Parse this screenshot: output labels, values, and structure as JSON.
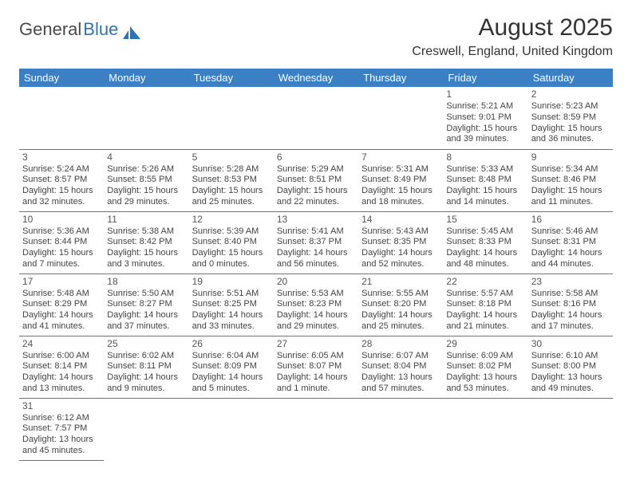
{
  "logo": {
    "general": "General",
    "blue": "Blue"
  },
  "title": "August 2025",
  "location": "Creswell, England, United Kingdom",
  "colors": {
    "header_bg": "#3b7fc4",
    "header_text": "#ffffff",
    "border": "#3b7fc4",
    "text": "#444444",
    "logo_blue": "#2e74b5"
  },
  "fonts": {
    "title_size": 30,
    "location_size": 16,
    "dayhead_size": 13,
    "cell_size": 11
  },
  "day_headers": [
    "Sunday",
    "Monday",
    "Tuesday",
    "Wednesday",
    "Thursday",
    "Friday",
    "Saturday"
  ],
  "weeks": [
    [
      null,
      null,
      null,
      null,
      null,
      {
        "n": "1",
        "sunrise": "5:21 AM",
        "sunset": "9:01 PM",
        "dayH": "15",
        "dayM": "39"
      },
      {
        "n": "2",
        "sunrise": "5:23 AM",
        "sunset": "8:59 PM",
        "dayH": "15",
        "dayM": "36"
      }
    ],
    [
      {
        "n": "3",
        "sunrise": "5:24 AM",
        "sunset": "8:57 PM",
        "dayH": "15",
        "dayM": "32"
      },
      {
        "n": "4",
        "sunrise": "5:26 AM",
        "sunset": "8:55 PM",
        "dayH": "15",
        "dayM": "29"
      },
      {
        "n": "5",
        "sunrise": "5:28 AM",
        "sunset": "8:53 PM",
        "dayH": "15",
        "dayM": "25"
      },
      {
        "n": "6",
        "sunrise": "5:29 AM",
        "sunset": "8:51 PM",
        "dayH": "15",
        "dayM": "22"
      },
      {
        "n": "7",
        "sunrise": "5:31 AM",
        "sunset": "8:49 PM",
        "dayH": "15",
        "dayM": "18"
      },
      {
        "n": "8",
        "sunrise": "5:33 AM",
        "sunset": "8:48 PM",
        "dayH": "15",
        "dayM": "14"
      },
      {
        "n": "9",
        "sunrise": "5:34 AM",
        "sunset": "8:46 PM",
        "dayH": "15",
        "dayM": "11"
      }
    ],
    [
      {
        "n": "10",
        "sunrise": "5:36 AM",
        "sunset": "8:44 PM",
        "dayH": "15",
        "dayM": "7"
      },
      {
        "n": "11",
        "sunrise": "5:38 AM",
        "sunset": "8:42 PM",
        "dayH": "15",
        "dayM": "3"
      },
      {
        "n": "12",
        "sunrise": "5:39 AM",
        "sunset": "8:40 PM",
        "dayH": "15",
        "dayM": "0"
      },
      {
        "n": "13",
        "sunrise": "5:41 AM",
        "sunset": "8:37 PM",
        "dayH": "14",
        "dayM": "56"
      },
      {
        "n": "14",
        "sunrise": "5:43 AM",
        "sunset": "8:35 PM",
        "dayH": "14",
        "dayM": "52"
      },
      {
        "n": "15",
        "sunrise": "5:45 AM",
        "sunset": "8:33 PM",
        "dayH": "14",
        "dayM": "48"
      },
      {
        "n": "16",
        "sunrise": "5:46 AM",
        "sunset": "8:31 PM",
        "dayH": "14",
        "dayM": "44"
      }
    ],
    [
      {
        "n": "17",
        "sunrise": "5:48 AM",
        "sunset": "8:29 PM",
        "dayH": "14",
        "dayM": "41"
      },
      {
        "n": "18",
        "sunrise": "5:50 AM",
        "sunset": "8:27 PM",
        "dayH": "14",
        "dayM": "37"
      },
      {
        "n": "19",
        "sunrise": "5:51 AM",
        "sunset": "8:25 PM",
        "dayH": "14",
        "dayM": "33"
      },
      {
        "n": "20",
        "sunrise": "5:53 AM",
        "sunset": "8:23 PM",
        "dayH": "14",
        "dayM": "29"
      },
      {
        "n": "21",
        "sunrise": "5:55 AM",
        "sunset": "8:20 PM",
        "dayH": "14",
        "dayM": "25"
      },
      {
        "n": "22",
        "sunrise": "5:57 AM",
        "sunset": "8:18 PM",
        "dayH": "14",
        "dayM": "21"
      },
      {
        "n": "23",
        "sunrise": "5:58 AM",
        "sunset": "8:16 PM",
        "dayH": "14",
        "dayM": "17"
      }
    ],
    [
      {
        "n": "24",
        "sunrise": "6:00 AM",
        "sunset": "8:14 PM",
        "dayH": "14",
        "dayM": "13"
      },
      {
        "n": "25",
        "sunrise": "6:02 AM",
        "sunset": "8:11 PM",
        "dayH": "14",
        "dayM": "9"
      },
      {
        "n": "26",
        "sunrise": "6:04 AM",
        "sunset": "8:09 PM",
        "dayH": "14",
        "dayM": "5"
      },
      {
        "n": "27",
        "sunrise": "6:05 AM",
        "sunset": "8:07 PM",
        "dayH": "14",
        "dayM": "1",
        "minuteWord": "minute"
      },
      {
        "n": "28",
        "sunrise": "6:07 AM",
        "sunset": "8:04 PM",
        "dayH": "13",
        "dayM": "57"
      },
      {
        "n": "29",
        "sunrise": "6:09 AM",
        "sunset": "8:02 PM",
        "dayH": "13",
        "dayM": "53"
      },
      {
        "n": "30",
        "sunrise": "6:10 AM",
        "sunset": "8:00 PM",
        "dayH": "13",
        "dayM": "49"
      }
    ],
    [
      {
        "n": "31",
        "sunrise": "6:12 AM",
        "sunset": "7:57 PM",
        "dayH": "13",
        "dayM": "45"
      },
      null,
      null,
      null,
      null,
      null,
      null
    ]
  ],
  "labels": {
    "sunrise": "Sunrise:",
    "sunset": "Sunset:",
    "daylight": "Daylight:",
    "hours": "hours",
    "and": "and",
    "minutes": "minutes"
  }
}
